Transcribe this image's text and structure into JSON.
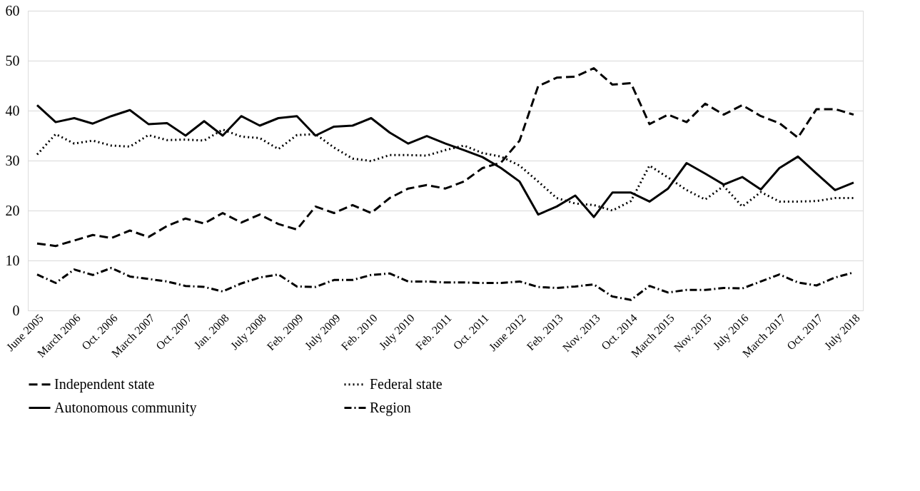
{
  "chart_data": {
    "type": "line",
    "categories": [
      "June 2005",
      null,
      "March 2006",
      null,
      "Oct. 2006",
      null,
      "March 2007",
      null,
      "Oct. 2007",
      null,
      "Jan. 2008",
      null,
      "July 2008",
      null,
      "Feb. 2009",
      null,
      "July 2009",
      null,
      "Feb. 2010",
      null,
      "July 2010",
      null,
      "Feb. 2011",
      null,
      "Oct. 2011",
      null,
      "June 2012",
      null,
      "Feb. 2013",
      null,
      "Nov. 2013",
      null,
      "Oct. 2014",
      null,
      "March 2015",
      null,
      "Nov. 2015",
      null,
      "July 2016",
      null,
      "March 2017",
      null,
      "Oct. 2017",
      null,
      "July 2018"
    ],
    "ylim": [
      0,
      60
    ],
    "yticks": [
      0,
      10,
      20,
      30,
      40,
      50,
      60
    ],
    "grid": "y",
    "legend": "bottom",
    "series": [
      {
        "name": "Independent state",
        "color": "#000000",
        "line_style": "dashed",
        "values": [
          13.4,
          12.9,
          14.0,
          15.1,
          14.5,
          16.0,
          14.7,
          16.9,
          18.4,
          17.4,
          19.5,
          17.6,
          19.2,
          17.3,
          16.2,
          20.8,
          19.5,
          21.1,
          19.5,
          22.5,
          24.4,
          25.1,
          24.4,
          25.8,
          28.5,
          29.6,
          34.0,
          44.9,
          46.6,
          46.8,
          48.5,
          45.2,
          45.5,
          37.3,
          39.2,
          37.7,
          41.4,
          39.2,
          41.1,
          38.9,
          37.5,
          34.6,
          40.3,
          40.3,
          39.2
        ]
      },
      {
        "name": "Federal  state",
        "color": "#000000",
        "line_style": "dotted",
        "values": [
          31.2,
          35.3,
          33.4,
          34.0,
          33.0,
          32.8,
          35.1,
          34.1,
          34.2,
          34.0,
          36.2,
          34.8,
          34.5,
          32.3,
          35.1,
          35.3,
          32.6,
          30.4,
          29.9,
          31.1,
          31.1,
          31.0,
          32.1,
          33.0,
          31.5,
          30.8,
          29.0,
          25.8,
          22.5,
          21.4,
          21.1,
          20.0,
          21.9,
          29.0,
          26.6,
          24.1,
          22.2,
          24.9,
          20.8,
          23.7,
          21.8,
          21.8,
          21.9,
          22.5,
          22.5
        ]
      },
      {
        "name": "Autonomous community",
        "color": "#000000",
        "line_style": "solid",
        "values": [
          41.1,
          37.7,
          38.5,
          37.4,
          38.9,
          40.1,
          37.3,
          37.5,
          35.0,
          37.9,
          35.0,
          38.9,
          37.0,
          38.5,
          38.9,
          35.0,
          36.8,
          37.0,
          38.5,
          35.6,
          33.4,
          34.9,
          33.4,
          32.1,
          30.7,
          28.5,
          25.8,
          19.2,
          20.8,
          23.0,
          18.7,
          23.6,
          23.6,
          21.8,
          24.4,
          29.5,
          27.4,
          25.2,
          26.7,
          24.2,
          28.5,
          30.8,
          27.4,
          24.1,
          25.6
        ]
      },
      {
        "name": "Region",
        "color": "#000000",
        "line_style": "dashdot",
        "values": [
          7.2,
          5.5,
          8.2,
          7.1,
          8.5,
          6.8,
          6.3,
          5.8,
          4.9,
          4.7,
          3.8,
          5.4,
          6.6,
          7.2,
          4.8,
          4.7,
          6.1,
          6.1,
          7.1,
          7.4,
          5.8,
          5.8,
          5.6,
          5.6,
          5.5,
          5.5,
          5.8,
          4.7,
          4.5,
          4.8,
          5.2,
          2.8,
          2.1,
          4.9,
          3.6,
          4.1,
          4.1,
          4.5,
          4.4,
          5.8,
          7.2,
          5.6,
          5.0,
          6.6,
          7.6
        ]
      }
    ]
  }
}
